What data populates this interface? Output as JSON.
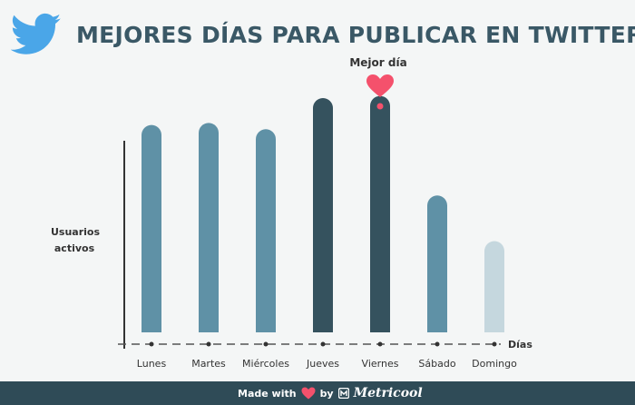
{
  "header": {
    "title": "MEJORES DÍAS PARA PUBLICAR EN TWITTER",
    "logo_icon": "twitter-bird-icon"
  },
  "chart_data": {
    "type": "bar",
    "title": "MEJORES DÍAS PARA PUBLICAR EN TWITTER",
    "xlabel": "Días",
    "ylabel": "Usuarios activos",
    "categories": [
      "Lunes",
      "Martes",
      "Miércoles",
      "Jueves",
      "Viernes",
      "Sábado",
      "Domingo"
    ],
    "values": [
      100,
      101,
      98,
      113,
      114,
      66,
      44
    ],
    "ylim": [
      0,
      120
    ],
    "yticks": false,
    "grid": false,
    "highlight": [
      "Jueves",
      "Viernes"
    ],
    "annotation": {
      "text": "Mejor día",
      "category": "Viernes",
      "icon": "heart-icon"
    },
    "colors": {
      "Lunes": "#5f91a6",
      "Martes": "#5f91a6",
      "Miércoles": "#5f91a6",
      "Jueves": "#35525e",
      "Viernes": "#35525e",
      "Sábado": "#5f91a6",
      "Domingo": "#c5d7de"
    },
    "heart_color": "#f4516c",
    "axis_color": "#333333"
  },
  "footer": {
    "made_with": "Made with",
    "by": "by",
    "brand": "Metricool",
    "background": "#2f4b57"
  }
}
